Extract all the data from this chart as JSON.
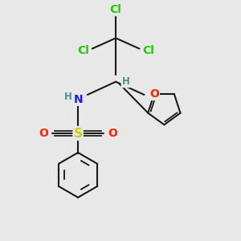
{
  "bg_color": "#e8e8e8",
  "bond_color": "#1a1a1a",
  "bond_width": 1.5,
  "atom_colors": {
    "Cl": "#22cc00",
    "N": "#1a1aff",
    "H": "#4a9090",
    "S": "#cccc00",
    "O": "#ff2200",
    "C": "#1a1a1a"
  },
  "font_size_atom": 10,
  "font_size_small": 8.5
}
